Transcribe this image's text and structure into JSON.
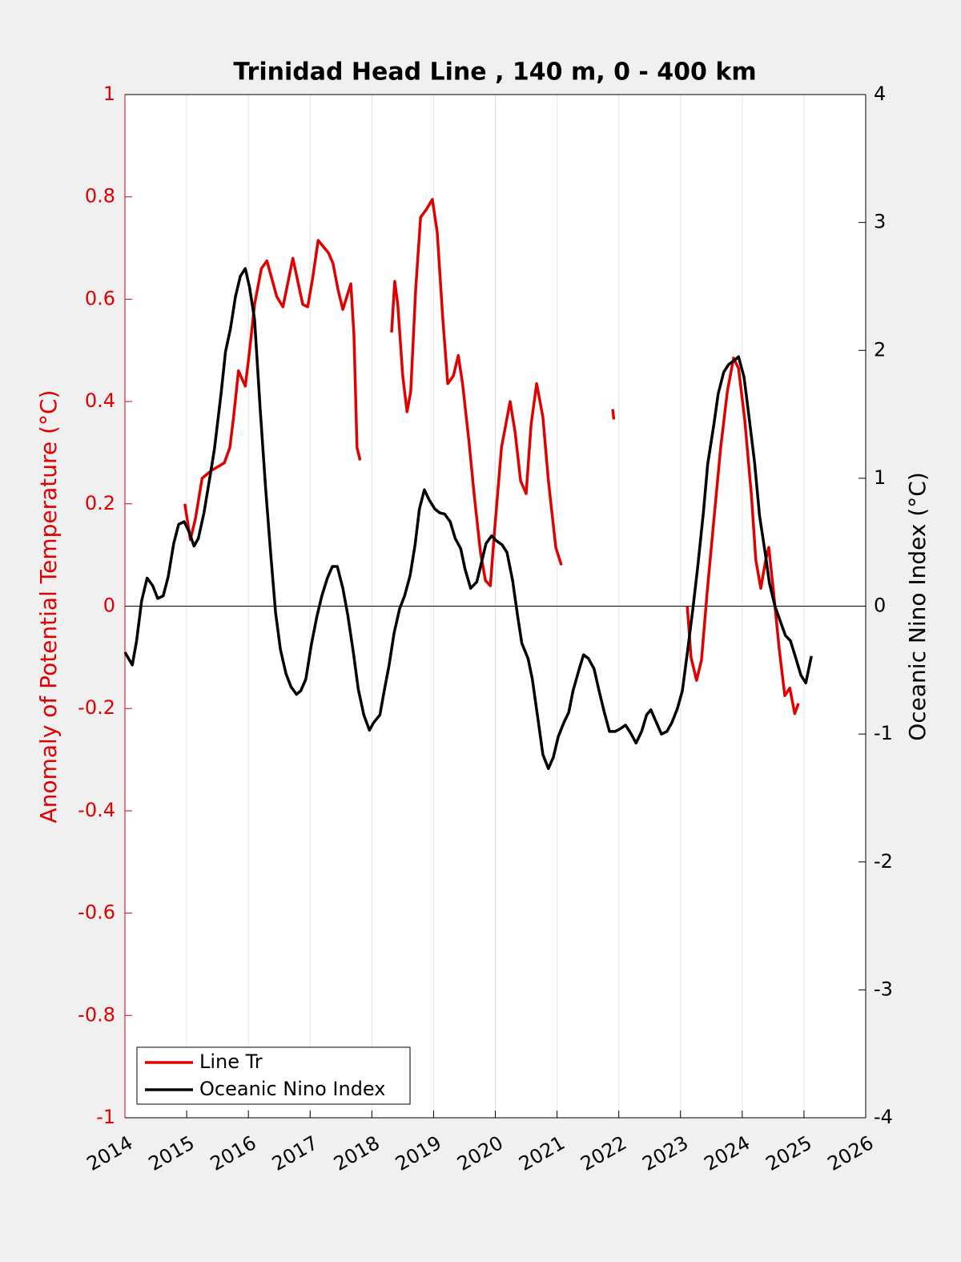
{
  "chart_data": {
    "type": "line",
    "title": "Trinidad Head Line , 140 m, 0 - 400 km",
    "ylabel": "Anomaly of Potential Temperature (°C)",
    "y2label": "Oceanic Nino Index (°C)",
    "xlim": [
      2014,
      2026
    ],
    "xticks": [
      2014,
      2015,
      2016,
      2017,
      2018,
      2019,
      2020,
      2021,
      2022,
      2023,
      2024,
      2025,
      2026
    ],
    "ylim": [
      -1,
      1
    ],
    "yticks": [
      -1,
      -0.8,
      -0.6,
      -0.4,
      -0.2,
      0,
      0.2,
      0.4,
      0.6,
      0.8,
      1
    ],
    "y2lim": [
      -4,
      4
    ],
    "y2ticks": [
      -4,
      -3,
      -2,
      -1,
      0,
      1,
      2,
      3,
      4
    ],
    "xgrid": true,
    "ycolor": "#e00000",
    "legend": "lower left",
    "series": [
      {
        "name": "Line Tr",
        "color": "#e00000",
        "axis": "y",
        "x": [
          2014.97,
          2015.06,
          2015.14,
          2015.25,
          2015.4,
          2015.61,
          2015.7,
          2015.76,
          2015.84,
          2015.95,
          2016.02,
          2016.1,
          2016.21,
          2016.3,
          2016.46,
          2016.56,
          2016.72,
          2016.88,
          2016.96,
          2017.04,
          2017.13,
          2017.3,
          2017.37,
          2017.45,
          2017.53,
          2017.66,
          2017.71,
          2017.76,
          2017.81,
          2018.0,
          2018.32,
          2018.37,
          2018.42,
          2018.5,
          2018.57,
          2018.63,
          2018.71,
          2018.79,
          2018.88,
          2018.98,
          2019.06,
          2019.15,
          2019.23,
          2019.32,
          2019.4,
          2019.47,
          2019.57,
          2019.66,
          2019.76,
          2019.84,
          2019.92,
          2019.99,
          2020.1,
          2020.17,
          2020.24,
          2020.32,
          2020.41,
          2020.5,
          2020.58,
          2020.67,
          2020.77,
          2020.86,
          2020.98,
          2021.07,
          2021.5,
          2021.9,
          2021.92,
          2022.5,
          2023.11,
          2023.17,
          2023.26,
          2023.34,
          2023.43,
          2023.55,
          2023.65,
          2023.76,
          2023.86,
          2023.94,
          2024.04,
          2024.15,
          2024.22,
          2024.3,
          2024.38,
          2024.43,
          2024.51,
          2024.6,
          2024.69,
          2024.77,
          2024.85,
          2024.91
        ],
        "values": [
          0.2,
          0.13,
          0.17,
          0.25,
          0.265,
          0.28,
          0.31,
          0.37,
          0.46,
          0.43,
          0.5,
          0.59,
          0.66,
          0.675,
          0.605,
          0.585,
          0.68,
          0.59,
          0.585,
          0.64,
          0.715,
          0.69,
          0.67,
          0.62,
          0.58,
          0.63,
          0.53,
          0.31,
          0.285,
          null,
          0.535,
          0.635,
          0.59,
          0.45,
          0.38,
          0.42,
          0.62,
          0.76,
          0.775,
          0.795,
          0.73,
          0.56,
          0.435,
          0.45,
          0.49,
          0.435,
          0.325,
          0.215,
          0.105,
          0.05,
          0.04,
          0.15,
          0.31,
          0.355,
          0.4,
          0.34,
          0.245,
          0.22,
          0.355,
          0.435,
          0.37,
          0.245,
          0.115,
          0.08,
          null,
          0.385,
          0.365,
          null,
          0,
          -0.1,
          -0.145,
          -0.105,
          0.025,
          0.18,
          0.31,
          0.42,
          0.485,
          0.465,
          0.365,
          0.215,
          0.09,
          0.035,
          0.09,
          0.115,
          0.025,
          -0.085,
          -0.175,
          -0.16,
          -0.21,
          -0.19
        ]
      },
      {
        "name": "Oceanic Nino Index",
        "color": "#000000",
        "axis": "y2",
        "x": [
          2014.0,
          2014.12,
          2014.19,
          2014.27,
          2014.36,
          2014.45,
          2014.53,
          2014.62,
          2014.7,
          2014.79,
          2014.87,
          2014.96,
          2015.04,
          2015.12,
          2015.19,
          2015.28,
          2015.38,
          2015.45,
          2015.56,
          2015.63,
          2015.71,
          2015.79,
          2015.87,
          2015.95,
          2016.02,
          2016.1,
          2016.19,
          2016.28,
          2016.36,
          2016.44,
          2016.52,
          2016.61,
          2016.69,
          2016.78,
          2016.85,
          2016.93,
          2017.02,
          2017.11,
          2017.19,
          2017.28,
          2017.36,
          2017.44,
          2017.53,
          2017.61,
          2017.7,
          2017.78,
          2017.87,
          2017.96,
          2018.03,
          2018.13,
          2018.2,
          2018.28,
          2018.36,
          2018.45,
          2018.53,
          2018.62,
          2018.7,
          2018.77,
          2018.85,
          2018.93,
          2019.02,
          2019.1,
          2019.18,
          2019.27,
          2019.35,
          2019.44,
          2019.51,
          2019.6,
          2019.7,
          2019.77,
          2019.85,
          2019.94,
          2020.02,
          2020.11,
          2020.19,
          2020.28,
          2020.36,
          2020.43,
          2020.53,
          2020.6,
          2020.69,
          2020.77,
          2020.86,
          2020.94,
          2021.02,
          2021.11,
          2021.19,
          2021.26,
          2021.36,
          2021.43,
          2021.51,
          2021.6,
          2021.68,
          2021.76,
          2021.85,
          2021.94,
          2022.02,
          2022.11,
          2022.19,
          2022.28,
          2022.37,
          2022.45,
          2022.52,
          2022.61,
          2022.69,
          2022.78,
          2022.86,
          2022.95,
          2023.03,
          2023.12,
          2023.2,
          2023.28,
          2023.37,
          2023.44,
          2023.54,
          2023.61,
          2023.7,
          2023.78,
          2023.87,
          2023.94,
          2024.03,
          2024.11,
          2024.2,
          2024.28,
          2024.37,
          2024.44,
          2024.53,
          2024.61,
          2024.7,
          2024.78,
          2024.87,
          2024.95,
          2025.03,
          2025.12
        ],
        "values": [
          -0.36,
          -0.46,
          -0.27,
          0.04,
          0.22,
          0.16,
          0.06,
          0.08,
          0.23,
          0.49,
          0.64,
          0.66,
          0.58,
          0.47,
          0.53,
          0.73,
          1.02,
          1.23,
          1.67,
          1.99,
          2.17,
          2.42,
          2.58,
          2.64,
          2.49,
          2.24,
          1.55,
          0.92,
          0.42,
          -0.05,
          -0.34,
          -0.53,
          -0.63,
          -0.69,
          -0.66,
          -0.57,
          -0.3,
          -0.08,
          0.08,
          0.22,
          0.31,
          0.31,
          0.14,
          -0.07,
          -0.36,
          -0.65,
          -0.85,
          -0.97,
          -0.91,
          -0.85,
          -0.66,
          -0.46,
          -0.21,
          -0.02,
          0.08,
          0.24,
          0.48,
          0.76,
          0.91,
          0.83,
          0.76,
          0.73,
          0.72,
          0.66,
          0.53,
          0.45,
          0.29,
          0.14,
          0.19,
          0.33,
          0.49,
          0.55,
          0.51,
          0.48,
          0.42,
          0.2,
          -0.07,
          -0.29,
          -0.41,
          -0.57,
          -0.88,
          -1.16,
          -1.27,
          -1.18,
          -1.02,
          -0.91,
          -0.83,
          -0.66,
          -0.49,
          -0.38,
          -0.41,
          -0.49,
          -0.66,
          -0.82,
          -0.98,
          -0.98,
          -0.96,
          -0.93,
          -0.99,
          -1.07,
          -0.98,
          -0.85,
          -0.81,
          -0.91,
          -1.0,
          -0.98,
          -0.91,
          -0.8,
          -0.66,
          -0.33,
          -0.02,
          0.31,
          0.73,
          1.11,
          1.42,
          1.66,
          1.83,
          1.89,
          1.92,
          1.95,
          1.79,
          1.48,
          1.12,
          0.71,
          0.42,
          0.18,
          0.0,
          -0.11,
          -0.23,
          -0.27,
          -0.41,
          -0.54,
          -0.6,
          -0.39
        ]
      }
    ]
  }
}
